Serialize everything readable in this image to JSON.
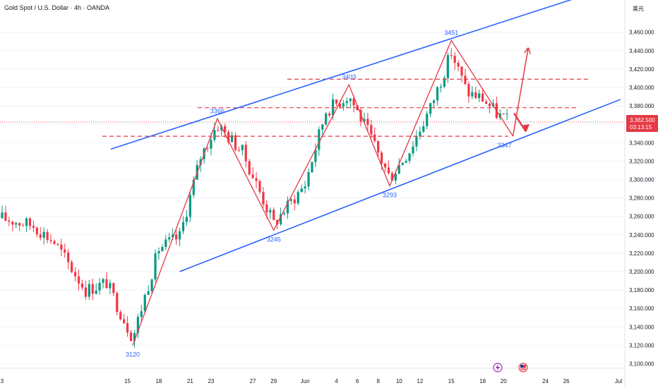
{
  "header": {
    "title": "Gold Spot / U.S. Dollar · 4h · OANDA",
    "currency": "美元"
  },
  "price_tag": {
    "price": "3,362.500",
    "countdown": "03:13:15"
  },
  "chart_data": {
    "type": "candlestick",
    "title": "Gold Spot / U.S. Dollar · 4h · OANDA",
    "y_unit": "USD",
    "ylim": [
      3095,
      3495
    ],
    "y_ticks": [
      3100,
      3120,
      3140,
      3160,
      3180,
      3200,
      3220,
      3240,
      3260,
      3280,
      3300,
      3320,
      3340,
      3360,
      3380,
      3400,
      3420,
      3440,
      3460
    ],
    "y_tick_labels": [
      "3,100.000",
      "3,120.000",
      "3,140.000",
      "3,160.000",
      "3,180.000",
      "3,200.000",
      "3,220.000",
      "3,240.000",
      "3,260.000",
      "3,280.000",
      "3,300.000",
      "3,320.000",
      "3,340.000",
      "3,360.000",
      "3,380.000",
      "3,400.000",
      "3,420.000",
      "3,440.000",
      "3,460.000"
    ],
    "x_tick_labels": [
      "3",
      "15",
      "18",
      "21",
      "23",
      "27",
      "29",
      "Jun",
      "4",
      "6",
      "8",
      "10",
      "12",
      "15",
      "18",
      "20",
      "24",
      "26",
      "Jul"
    ],
    "x_tick_days": [
      3,
      15,
      18,
      21,
      23,
      27,
      29,
      32,
      35,
      37,
      39,
      41,
      43,
      46,
      49,
      51,
      55,
      57,
      62
    ],
    "last_price": 3362.5,
    "pivots": [
      {
        "label": "3120",
        "day": 15.5,
        "price": 3120
      },
      {
        "label": "3366",
        "day": 23.6,
        "price": 3366
      },
      {
        "label": "3245",
        "day": 29.0,
        "price": 3245
      },
      {
        "label": "3403",
        "day": 36.2,
        "price": 3403
      },
      {
        "label": "3293",
        "day": 40.1,
        "price": 3293
      },
      {
        "label": "3451",
        "day": 46.0,
        "price": 3451
      },
      {
        "label": "3347",
        "day": 51.9,
        "price": 3347
      }
    ],
    "hlines": [
      3347,
      3378,
      3409
    ],
    "channel": {
      "upper": [
        {
          "day": 13.4,
          "price": 3333
        },
        {
          "day": 59.0,
          "price": 3501
        }
      ],
      "lower": [
        {
          "day": 20.0,
          "price": 3200
        },
        {
          "day": 62.2,
          "price": 3387
        }
      ]
    },
    "anchors": [
      {
        "day": 3,
        "price": 3258
      },
      {
        "day": 6,
        "price": 3250
      },
      {
        "day": 8,
        "price": 3232
      },
      {
        "day": 11,
        "price": 3180
      },
      {
        "day": 13,
        "price": 3188
      },
      {
        "day": 15.5,
        "price": 3128
      },
      {
        "day": 18,
        "price": 3225
      },
      {
        "day": 20,
        "price": 3238
      },
      {
        "day": 22,
        "price": 3325
      },
      {
        "day": 23.6,
        "price": 3360
      },
      {
        "day": 26,
        "price": 3330
      },
      {
        "day": 29,
        "price": 3252
      },
      {
        "day": 32,
        "price": 3295
      },
      {
        "day": 34,
        "price": 3375
      },
      {
        "day": 36.2,
        "price": 3392
      },
      {
        "day": 38,
        "price": 3352
      },
      {
        "day": 40.1,
        "price": 3302
      },
      {
        "day": 42,
        "price": 3332
      },
      {
        "day": 44,
        "price": 3378
      },
      {
        "day": 46,
        "price": 3438
      },
      {
        "day": 47.5,
        "price": 3395
      },
      {
        "day": 49,
        "price": 3388
      },
      {
        "day": 50.5,
        "price": 3370
      },
      {
        "day": 51.6,
        "price": 3362.5
      }
    ],
    "candles_per_day": 3,
    "seed": 17
  }
}
